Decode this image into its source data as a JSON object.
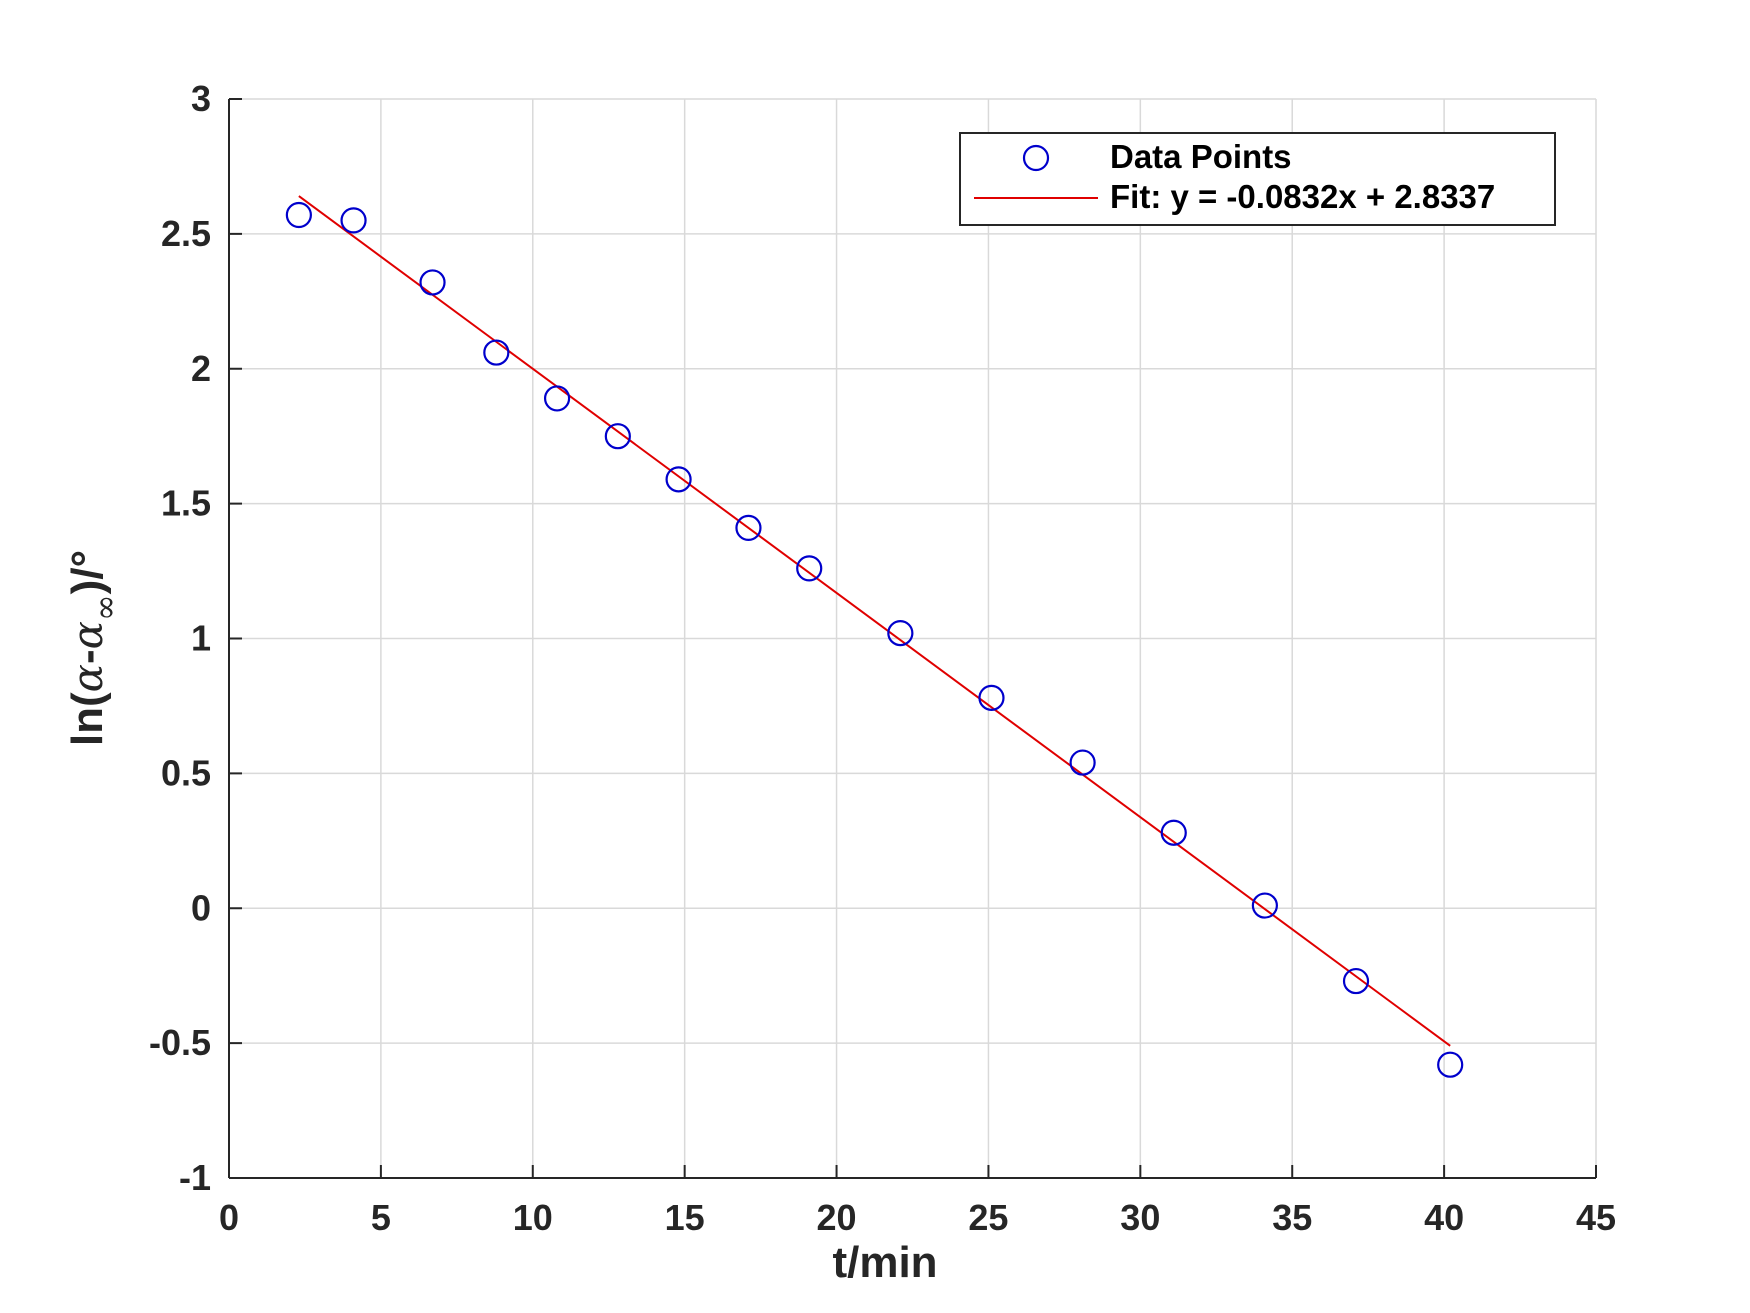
{
  "chart_data": {
    "type": "scatter",
    "xlabel": "t/min",
    "ylabel": {
      "prefix": "ln(",
      "alpha": "α",
      "dash": "-",
      "alpha2": "α",
      "sub": "∞",
      "suffix": ")/°"
    },
    "xlim": [
      0,
      45
    ],
    "ylim": [
      -1,
      3
    ],
    "xticks": [
      0,
      5,
      10,
      15,
      20,
      25,
      30,
      35,
      40,
      45
    ],
    "xtick_labels": [
      "0",
      "5",
      "10",
      "15",
      "20",
      "25",
      "30",
      "35",
      "40",
      "45"
    ],
    "yticks": [
      -1,
      -0.5,
      0,
      0.5,
      1,
      1.5,
      2,
      2.5,
      3
    ],
    "ytick_labels": [
      "-1",
      "-0.5",
      "0",
      "0.5",
      "1",
      "1.5",
      "2",
      "2.5",
      "3"
    ],
    "grid": true,
    "legend_position": "top-right",
    "series": [
      {
        "name": "Data Points",
        "kind": "scatter",
        "marker": "circle",
        "color": "#0000cc",
        "x": [
          2.3,
          4.1,
          6.7,
          8.8,
          10.8,
          12.8,
          14.8,
          17.1,
          19.1,
          22.1,
          25.1,
          28.1,
          31.1,
          34.1,
          37.1,
          40.2
        ],
        "y": [
          2.57,
          2.55,
          2.32,
          2.06,
          1.89,
          1.75,
          1.59,
          1.41,
          1.26,
          1.02,
          0.78,
          0.54,
          0.28,
          0.01,
          -0.27,
          -0.58
        ]
      },
      {
        "name": "Fit: y = -0.0832x + 2.8337",
        "kind": "line",
        "color": "#e00000",
        "x": [
          2.3,
          40.2
        ],
        "y": [
          2.64,
          -0.51
        ]
      }
    ]
  }
}
